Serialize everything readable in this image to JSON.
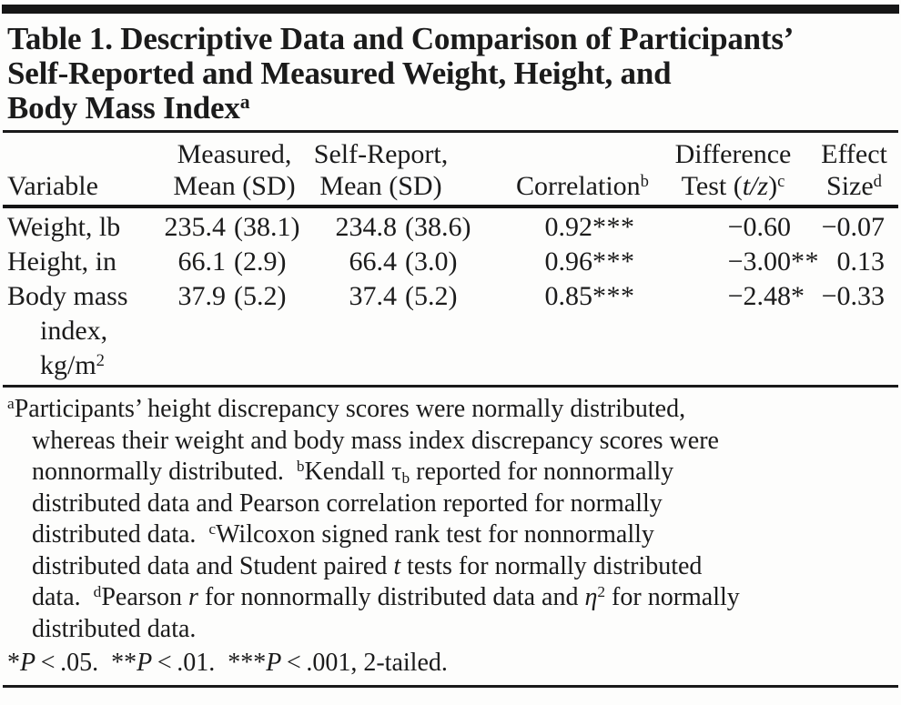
{
  "colors": {
    "background": "#fdfdfc",
    "text": "#1b1b1b",
    "rule": "#1a1a1a",
    "top_bar": "#161616"
  },
  "table": {
    "title": {
      "lines": [
        [
          {
            "t": "Table 1. Descriptive Data and Comparison of Participants’"
          }
        ],
        [
          {
            "t": "Self-Reported and Measured Weight, Height, and"
          }
        ],
        [
          {
            "t": "Body Mass Index"
          },
          {
            "t": "a",
            "sup": true
          }
        ]
      ]
    },
    "header": {
      "variable": [
        [
          {
            "t": "Variable"
          }
        ]
      ],
      "measured": [
        [
          {
            "t": "Measured,"
          }
        ],
        [
          {
            "t": "Mean (SD)"
          }
        ]
      ],
      "self_report": [
        [
          {
            "t": "Self-Report,"
          }
        ],
        [
          {
            "t": "Mean (SD)"
          }
        ]
      ],
      "correlation": [
        [
          {
            "t": "Correlation"
          },
          {
            "t": "b",
            "sup": true
          }
        ]
      ],
      "difference": [
        [
          {
            "t": "Difference"
          }
        ],
        [
          {
            "t": "Test ("
          },
          {
            "t": "t/z",
            "i": true
          },
          {
            "t": ")"
          },
          {
            "t": "c",
            "sup": true
          }
        ]
      ],
      "effect": [
        [
          {
            "t": "Effect"
          }
        ],
        [
          {
            "t": "Size"
          },
          {
            "t": "d",
            "sup": true
          }
        ]
      ]
    },
    "rows": [
      {
        "variable_lines": [
          [
            {
              "t": "Weight, lb"
            }
          ]
        ],
        "measured_mean": "235.4",
        "measured_sd": "(38.1)",
        "self_mean": "234.8",
        "self_sd": "(38.6)",
        "correlation": "0.92",
        "correlation_stars": "***",
        "difference": "−0.60",
        "difference_stars": "",
        "effect": "−0.07"
      },
      {
        "variable_lines": [
          [
            {
              "t": "Height, in"
            }
          ]
        ],
        "measured_mean": "66.1",
        "measured_sd": "(2.9)",
        "self_mean": "66.4",
        "self_sd": "(3.0)",
        "correlation": "0.96",
        "correlation_stars": "***",
        "difference": "−3.00",
        "difference_stars": "**",
        "effect": "0.13"
      },
      {
        "variable_lines": [
          [
            {
              "t": "Body mass"
            }
          ],
          [
            {
              "t": "index,"
            }
          ],
          [
            {
              "t": "kg/m"
            },
            {
              "t": "2",
              "sup": true
            }
          ]
        ],
        "measured_mean": "37.9",
        "measured_sd": "(5.2)",
        "self_mean": "37.4",
        "self_sd": "(5.2)",
        "correlation": "0.85",
        "correlation_stars": "***",
        "difference": "−2.48",
        "difference_stars": "*",
        "effect": "−0.33"
      }
    ],
    "footnotes": {
      "lines": [
        [
          {
            "t": "a",
            "sup": true
          },
          {
            "t": "Participants’ height discrepancy scores were normally distributed,"
          }
        ],
        [
          {
            "t": "whereas their weight and body mass index discrepancy scores were"
          }
        ],
        [
          {
            "t": "nonnormally distributed. "
          },
          {
            "t": "b",
            "sup": true
          },
          {
            "t": "Kendall τ"
          },
          {
            "t": "b",
            "sub": true
          },
          {
            "t": " reported for nonnormally"
          }
        ],
        [
          {
            "t": "distributed data and Pearson correlation reported for normally"
          }
        ],
        [
          {
            "t": "distributed data. "
          },
          {
            "t": "c",
            "sup": true
          },
          {
            "t": "Wilcoxon signed rank test for nonnormally"
          }
        ],
        [
          {
            "t": "distributed data and Student paired "
          },
          {
            "t": "t",
            "i": true
          },
          {
            "t": " tests for normally distributed"
          }
        ],
        [
          {
            "t": "data. "
          },
          {
            "t": "d",
            "sup": true
          },
          {
            "t": "Pearson "
          },
          {
            "t": "r",
            "i": true
          },
          {
            "t": " for nonnormally distributed data and "
          },
          {
            "t": "η",
            "i": true
          },
          {
            "t": "2",
            "sup": true
          },
          {
            "t": " for normally"
          }
        ],
        [
          {
            "t": "distributed data."
          }
        ]
      ],
      "significance": [
        {
          "t": "*"
        },
        {
          "t": "P",
          "i": true
        },
        {
          "t": " < .05. **"
        },
        {
          "t": "P",
          "i": true
        },
        {
          "t": " < .01. ***"
        },
        {
          "t": "P",
          "i": true
        },
        {
          "t": " < .001, 2-tailed."
        }
      ]
    }
  }
}
